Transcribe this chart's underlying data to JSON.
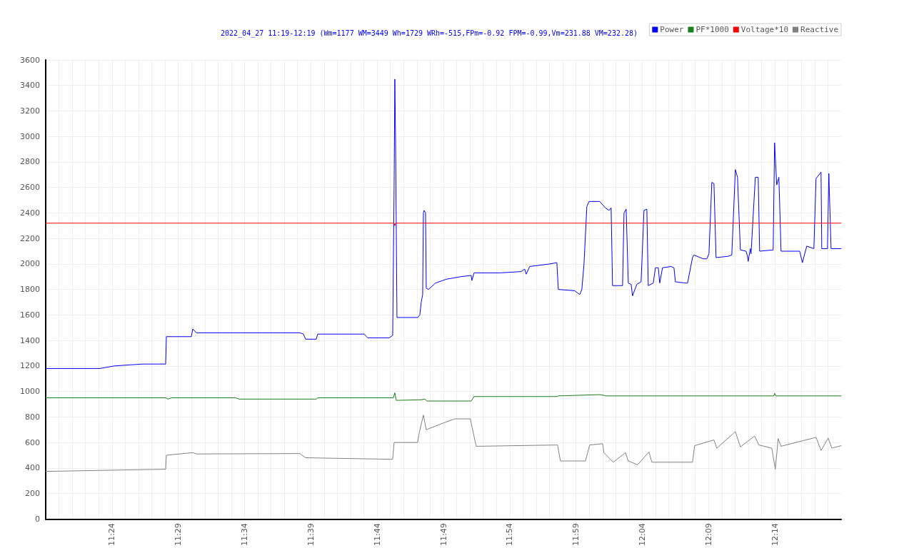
{
  "chart_data": {
    "type": "line",
    "title": "2022_04_27 11:19-12:19 (Wm=1177 WM=3449 Wh=1729 WRh=-515,FPm=-0.92 FPM=-0.99,Vm=231.88 VM=232.28)",
    "xlim": [
      11.3167,
      12.3167
    ],
    "xticks": [
      {
        "value": 11.3333,
        "label": null
      },
      {
        "value": 11.35,
        "label": null
      },
      {
        "value": 11.3667,
        "label": null
      },
      {
        "value": 11.3833,
        "label": null
      },
      {
        "value": 11.4,
        "label": "11:24"
      },
      {
        "value": 11.4167,
        "label": null
      },
      {
        "value": 11.4333,
        "label": null
      },
      {
        "value": 11.45,
        "label": null
      },
      {
        "value": 11.4667,
        "label": null
      },
      {
        "value": 11.4833,
        "label": "11:29"
      },
      {
        "value": 11.5,
        "label": null
      },
      {
        "value": 11.5167,
        "label": null
      },
      {
        "value": 11.5333,
        "label": null
      },
      {
        "value": 11.55,
        "label": null
      },
      {
        "value": 11.5667,
        "label": "11:34"
      },
      {
        "value": 11.5833,
        "label": null
      },
      {
        "value": 11.6,
        "label": null
      },
      {
        "value": 11.6167,
        "label": null
      },
      {
        "value": 11.6333,
        "label": null
      },
      {
        "value": 11.65,
        "label": "11:39"
      },
      {
        "value": 11.6667,
        "label": null
      },
      {
        "value": 11.6833,
        "label": null
      },
      {
        "value": 11.7,
        "label": null
      },
      {
        "value": 11.7167,
        "label": null
      },
      {
        "value": 11.7333,
        "label": "11:44"
      },
      {
        "value": 11.75,
        "label": null
      },
      {
        "value": 11.7667,
        "label": null
      },
      {
        "value": 11.7833,
        "label": null
      },
      {
        "value": 11.8,
        "label": null
      },
      {
        "value": 11.8167,
        "label": "11:49"
      },
      {
        "value": 11.8333,
        "label": null
      },
      {
        "value": 11.85,
        "label": null
      },
      {
        "value": 11.8667,
        "label": null
      },
      {
        "value": 11.8833,
        "label": null
      },
      {
        "value": 11.9,
        "label": "11:54"
      },
      {
        "value": 11.9167,
        "label": null
      },
      {
        "value": 11.9333,
        "label": null
      },
      {
        "value": 11.95,
        "label": null
      },
      {
        "value": 11.9667,
        "label": null
      },
      {
        "value": 11.9833,
        "label": "11:59"
      },
      {
        "value": 12.0,
        "label": null
      },
      {
        "value": 12.0167,
        "label": null
      },
      {
        "value": 12.0333,
        "label": null
      },
      {
        "value": 12.05,
        "label": null
      },
      {
        "value": 12.0667,
        "label": "12:04"
      },
      {
        "value": 12.0833,
        "label": null
      },
      {
        "value": 12.1,
        "label": null
      },
      {
        "value": 12.1167,
        "label": null
      },
      {
        "value": 12.1333,
        "label": null
      },
      {
        "value": 12.15,
        "label": "12:09"
      },
      {
        "value": 12.1667,
        "label": null
      },
      {
        "value": 12.1833,
        "label": null
      },
      {
        "value": 12.2,
        "label": null
      },
      {
        "value": 12.2167,
        "label": null
      },
      {
        "value": 12.2333,
        "label": "12:14"
      },
      {
        "value": 12.25,
        "label": null
      },
      {
        "value": 12.2667,
        "label": null
      },
      {
        "value": 12.2833,
        "label": null
      },
      {
        "value": 12.3,
        "label": null
      }
    ],
    "ylim": [
      0,
      3600
    ],
    "yticks": [
      0,
      200,
      400,
      600,
      800,
      1000,
      1200,
      1400,
      1600,
      1800,
      2000,
      2200,
      2400,
      2600,
      2800,
      3000,
      3200,
      3400,
      3600
    ],
    "grid": true,
    "legend": "top right",
    "marker": "none",
    "line_style": "solid",
    "series": [
      {
        "name": "Power",
        "color": "#0000ff",
        "x": [
          11.3167,
          11.3849,
          11.4029,
          11.4388,
          11.4675,
          11.4684,
          11.4998,
          11.5016,
          11.5061,
          11.6362,
          11.6407,
          11.6434,
          11.6569,
          11.6586,
          11.717,
          11.7215,
          11.7484,
          11.7529,
          11.7547,
          11.7556,
          11.7565,
          11.7583,
          11.7843,
          11.787,
          11.7888,
          11.7906,
          11.7915,
          11.7924,
          11.7942,
          11.7951,
          11.7978,
          11.8067,
          11.8202,
          11.8382,
          11.8516,
          11.8525,
          11.8552,
          11.8875,
          11.9144,
          11.9189,
          11.9207,
          11.9252,
          11.9503,
          11.9593,
          11.9611,
          11.9817,
          11.988,
          11.9907,
          11.9934,
          11.997,
          11.9997,
          12.0132,
          12.0203,
          12.0248,
          12.0275,
          12.0293,
          12.0419,
          12.0437,
          12.0464,
          12.0491,
          12.0527,
          12.0544,
          12.0598,
          12.0652,
          12.0688,
          12.0724,
          12.0742,
          12.0805,
          12.0832,
          12.0868,
          12.0886,
          12.0921,
          12.1029,
          12.1065,
          12.1083,
          12.1209,
          12.1236,
          12.1298,
          12.1316,
          12.1433,
          12.1478,
          12.1505,
          12.1541,
          12.1568,
          12.1594,
          12.1747,
          12.1792,
          12.1837,
          12.1864,
          12.19,
          12.1971,
          12.1989,
          12.1998,
          12.2025,
          12.2034,
          12.2088,
          12.2124,
          12.2142,
          12.2312,
          12.233,
          12.2357,
          12.2384,
          12.2411,
          12.2645,
          12.268,
          12.2734,
          12.2824,
          12.2851,
          12.2914,
          12.2923,
          12.2995,
          12.3012,
          12.304,
          12.3167
        ],
        "values": [
          1180,
          1180,
          1200,
          1215,
          1215,
          1430,
          1430,
          1490,
          1460,
          1460,
          1450,
          1410,
          1410,
          1450,
          1450,
          1420,
          1420,
          1440,
          2600,
          3449,
          2990,
          1580,
          1580,
          1600,
          1700,
          1760,
          2400,
          2420,
          2400,
          1810,
          1800,
          1850,
          1880,
          1900,
          1910,
          1870,
          1930,
          1930,
          1940,
          1960,
          1920,
          1980,
          2000,
          2010,
          1800,
          1790,
          1760,
          1800,
          2000,
          2450,
          2490,
          2490,
          2440,
          2420,
          2440,
          1830,
          1830,
          2400,
          2430,
          1850,
          1840,
          1750,
          1840,
          1860,
          2420,
          2430,
          1830,
          1850,
          1970,
          1970,
          1850,
          1970,
          1980,
          1970,
          1860,
          1850,
          1850,
          2050,
          2070,
          2040,
          2040,
          2080,
          2640,
          2630,
          2050,
          2060,
          2070,
          2740,
          2680,
          2110,
          2100,
          2060,
          2020,
          2120,
          2080,
          2680,
          2680,
          2100,
          2110,
          2950,
          2620,
          2680,
          2100,
          2100,
          2010,
          2140,
          2120,
          2670,
          2720,
          2120,
          2120,
          2710,
          2120,
          2120
        ]
      },
      {
        "name": "PF*1000",
        "color": "#1a7f1a",
        "x": [
          11.3167,
          11.4675,
          11.4702,
          11.4747,
          11.5554,
          11.5599,
          11.6569,
          11.6586,
          11.7538,
          11.7556,
          11.7574,
          11.7888,
          11.7933,
          11.796,
          11.8516,
          11.8552,
          11.9593,
          11.9611,
          12.0132,
          12.0221,
          12.2322,
          12.233,
          12.2348,
          12.3167
        ],
        "values": [
          950,
          950,
          940,
          950,
          950,
          940,
          940,
          950,
          950,
          990,
          930,
          935,
          940,
          925,
          925,
          960,
          960,
          965,
          975,
          965,
          965,
          985,
          965,
          965
        ]
      },
      {
        "name": "Voltage*10",
        "color": "#ff0000",
        "x": [
          11.3167,
          11.7547,
          11.7556,
          11.7565,
          12.3167
        ],
        "values": [
          2320,
          2320,
          2300,
          2320,
          2320
        ]
      },
      {
        "name": "Reactive",
        "color": "#808080",
        "x": [
          11.3167,
          11.4675,
          11.4684,
          11.5016,
          11.5061,
          11.6362,
          11.6434,
          11.7529,
          11.7547,
          11.7843,
          11.7861,
          11.7915,
          11.7951,
          11.8157,
          11.831,
          11.8507,
          11.8525,
          11.8579,
          11.9602,
          11.9638,
          11.9952,
          12.0006,
          12.0168,
          12.0185,
          12.0302,
          12.0455,
          12.0491,
          12.0607,
          12.0751,
          12.0787,
          12.1298,
          12.1325,
          12.1568,
          12.1604,
          12.1837,
          12.19,
          12.2079,
          12.2133,
          12.2295,
          12.2339,
          12.2375,
          12.2411,
          12.2851,
          12.2914,
          12.3004,
          12.3049,
          12.3167
        ],
        "values": [
          373,
          390,
          500,
          520,
          510,
          513,
          480,
          468,
          600,
          600,
          670,
          815,
          700,
          750,
          785,
          785,
          725,
          570,
          580,
          455,
          455,
          580,
          590,
          520,
          445,
          520,
          455,
          425,
          525,
          445,
          445,
          575,
          620,
          555,
          685,
          565,
          650,
          580,
          555,
          390,
          630,
          570,
          640,
          537,
          635,
          555,
          575
        ]
      }
    ]
  }
}
